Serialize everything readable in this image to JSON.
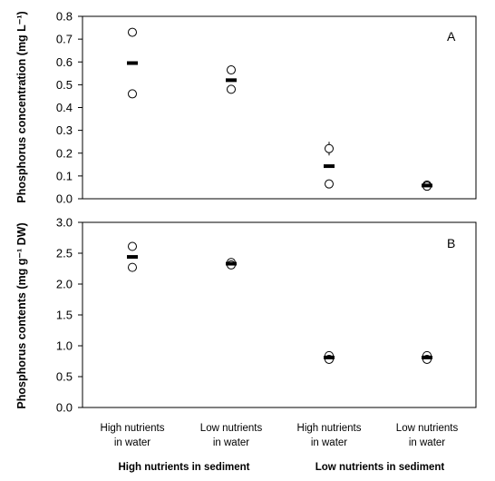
{
  "chart_data": [
    {
      "type": "scatter",
      "panel_label": "A",
      "ylabel": "Phosphorus concentration (mg L⁻¹)",
      "ylim": [
        0,
        0.8
      ],
      "yticks": [
        "0.0",
        "0.1",
        "0.2",
        "0.3",
        "0.4",
        "0.5",
        "0.6",
        "0.7",
        "0.8"
      ],
      "categories": [
        "High nutrients in water",
        "Low nutrients in water",
        "High nutrients in water",
        "Low nutrients in water"
      ],
      "series": [
        {
          "marker": "open-circle",
          "values": [
            [
              0.73,
              0.46
            ],
            [
              0.565,
              0.48
            ],
            [
              0.22,
              0.065
            ],
            [
              0.06,
              0.055
            ]
          ]
        },
        {
          "marker": "dash-mean",
          "values": [
            0.595,
            0.52,
            0.143,
            0.058
          ]
        }
      ],
      "error_bars": [
        null,
        null,
        0.03,
        null
      ]
    },
    {
      "type": "scatter",
      "panel_label": "B",
      "ylabel": "Phosphorus contents (mg g⁻¹ DW)",
      "ylim": [
        0,
        3.0
      ],
      "yticks": [
        "0.0",
        "0.5",
        "1.0",
        "1.5",
        "2.0",
        "2.5",
        "3.0"
      ],
      "categories": [
        "High nutrients in water",
        "Low nutrients in water",
        "High nutrients in water",
        "Low nutrients in water"
      ],
      "series": [
        {
          "marker": "open-circle",
          "values": [
            [
              2.61,
              2.27
            ],
            [
              2.35,
              2.31
            ],
            [
              0.84,
              0.78
            ],
            [
              0.84,
              0.78
            ]
          ]
        },
        {
          "marker": "dash-mean",
          "values": [
            2.44,
            2.33,
            0.81,
            0.81
          ]
        }
      ]
    }
  ],
  "x_axis": {
    "category_lines": [
      [
        "High nutrients",
        "in water"
      ],
      [
        "Low nutrients",
        "in water"
      ],
      [
        "High nutrients",
        "in water"
      ],
      [
        "Low nutrients",
        "in water"
      ]
    ],
    "groups": [
      "High nutrients in sediment",
      "Low nutrients in sediment"
    ]
  }
}
